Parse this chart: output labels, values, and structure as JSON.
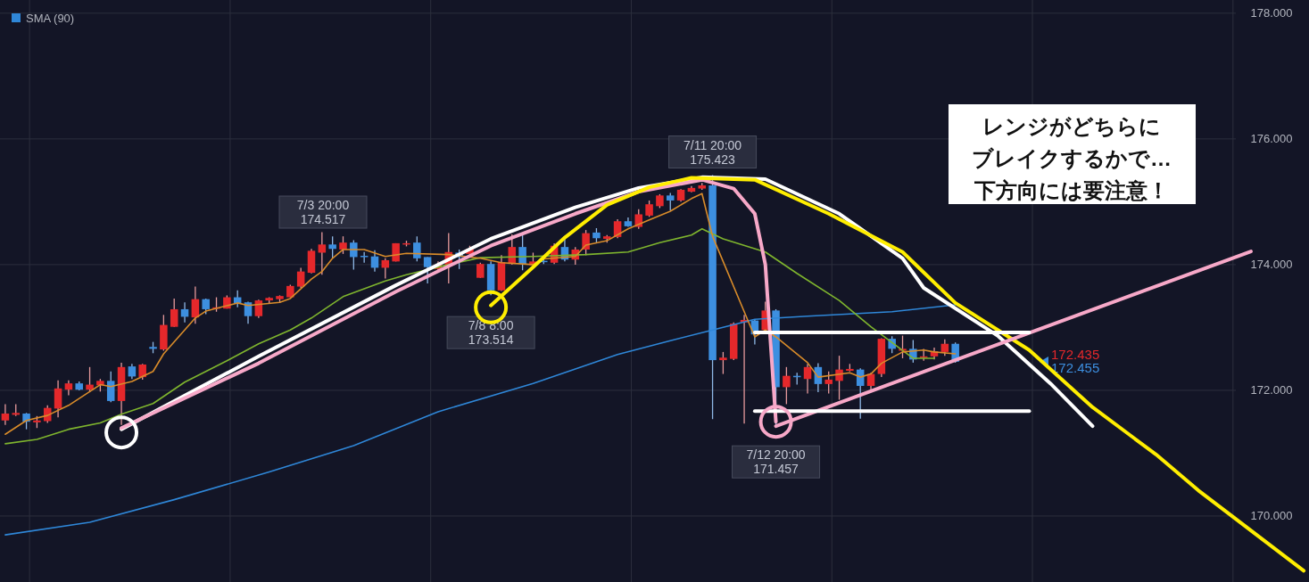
{
  "chart_data": {
    "type": "candlestick",
    "categories": [
      null,
      null,
      null,
      null,
      null,
      null,
      null,
      null,
      null,
      null,
      null,
      null,
      null,
      null,
      null,
      null,
      null,
      null,
      null,
      null,
      null,
      null,
      null,
      null,
      null,
      null,
      null,
      null,
      null,
      null,
      null,
      null,
      null,
      null,
      null,
      null,
      null,
      null,
      null,
      null,
      null,
      null,
      null,
      null,
      null,
      null,
      null,
      null,
      null,
      null,
      null,
      null,
      null,
      null,
      null,
      null,
      null,
      null,
      null,
      null,
      null,
      null,
      null,
      null,
      null,
      null,
      null,
      null,
      null,
      null,
      null,
      null,
      null,
      null,
      null,
      null,
      null,
      null,
      null,
      null,
      null,
      null,
      null,
      null,
      null,
      null,
      null,
      null,
      null,
      null,
      null,
      null,
      null,
      null,
      null,
      null,
      null,
      null,
      null,
      null,
      null,
      null,
      null,
      null,
      null,
      null,
      null,
      null,
      null,
      null,
      null,
      null,
      null,
      null,
      null,
      null,
      null,
      null,
      null,
      null,
      null,
      null,
      null,
      null
    ],
    "ohlc": [
      [
        171.52,
        171.78,
        171.45,
        171.63
      ],
      [
        171.61,
        171.78,
        171.59,
        171.64
      ],
      [
        171.63,
        171.64,
        171.38,
        171.5
      ],
      [
        171.49,
        171.59,
        171.4,
        171.52
      ],
      [
        171.51,
        171.76,
        171.48,
        171.72
      ],
      [
        171.71,
        172.16,
        171.57,
        172.03
      ],
      [
        172.01,
        172.16,
        171.92,
        172.11
      ],
      [
        172.11,
        172.14,
        172.0,
        172.01
      ],
      [
        172.01,
        172.37,
        171.97,
        172.09
      ],
      [
        172.08,
        172.18,
        171.98,
        172.15
      ],
      [
        172.15,
        172.3,
        171.81,
        171.83
      ],
      [
        171.83,
        172.44,
        171.45,
        172.37
      ],
      [
        172.38,
        172.42,
        172.18,
        172.22
      ],
      [
        172.21,
        172.42,
        172.17,
        172.41
      ],
      [
        172.69,
        172.77,
        172.59,
        172.66
      ],
      [
        172.65,
        173.2,
        172.63,
        173.04
      ],
      [
        173.01,
        173.46,
        173.01,
        173.29
      ],
      [
        173.29,
        173.4,
        173.08,
        173.17
      ],
      [
        173.16,
        173.65,
        173.06,
        173.45
      ],
      [
        173.45,
        173.46,
        173.21,
        173.29
      ],
      [
        173.3,
        173.48,
        173.25,
        173.32
      ],
      [
        173.3,
        173.51,
        173.3,
        173.48
      ],
      [
        173.48,
        173.59,
        173.32,
        173.38
      ],
      [
        173.4,
        173.41,
        173.06,
        173.18
      ],
      [
        173.18,
        173.44,
        173.15,
        173.43
      ],
      [
        173.43,
        173.48,
        173.39,
        173.47
      ],
      [
        173.45,
        173.51,
        173.39,
        173.5
      ],
      [
        173.48,
        173.68,
        173.48,
        173.66
      ],
      [
        173.65,
        173.95,
        173.63,
        173.89
      ],
      [
        173.87,
        174.25,
        173.86,
        174.22
      ],
      [
        174.19,
        174.517,
        173.84,
        174.32
      ],
      [
        174.32,
        174.45,
        174.1,
        174.25
      ],
      [
        174.24,
        174.45,
        174.17,
        174.35
      ],
      [
        174.35,
        174.39,
        173.92,
        174.12
      ],
      [
        174.14,
        174.2,
        174.03,
        174.12
      ],
      [
        174.13,
        174.23,
        173.89,
        173.95
      ],
      [
        173.95,
        174.1,
        173.78,
        174.07
      ],
      [
        174.05,
        174.34,
        174.05,
        174.34
      ],
      [
        174.32,
        174.38,
        174.29,
        174.34
      ],
      [
        174.35,
        174.45,
        174.05,
        174.1
      ],
      [
        174.12,
        174.12,
        173.7,
        173.96
      ],
      [
        173.93,
        174.05,
        173.88,
        174.0
      ],
      [
        173.97,
        174.5,
        173.7,
        174.2
      ],
      [
        174.19,
        174.24,
        173.93,
        174.12
      ],
      [
        174.17,
        174.3,
        174.12,
        174.25
      ],
      [
        173.79,
        174.03,
        173.79,
        174.01
      ],
      [
        174.01,
        174.05,
        173.514,
        173.59
      ],
      [
        173.59,
        174.15,
        173.58,
        174.04
      ],
      [
        174.01,
        174.48,
        174.0,
        174.28
      ],
      [
        174.28,
        174.47,
        173.91,
        174.01
      ],
      [
        173.99,
        174.19,
        173.96,
        174.05
      ],
      [
        174.06,
        174.1,
        174.01,
        174.04
      ],
      [
        174.03,
        174.34,
        174.01,
        174.3
      ],
      [
        174.28,
        174.43,
        174.05,
        174.08
      ],
      [
        174.08,
        174.28,
        174.0,
        174.24
      ],
      [
        174.24,
        174.55,
        174.15,
        174.5
      ],
      [
        174.51,
        174.58,
        174.34,
        174.42
      ],
      [
        174.41,
        174.47,
        174.35,
        174.45
      ],
      [
        174.44,
        174.72,
        174.42,
        174.69
      ],
      [
        174.69,
        174.75,
        174.6,
        174.61
      ],
      [
        174.6,
        174.88,
        174.57,
        174.8
      ],
      [
        174.78,
        175.02,
        174.76,
        174.96
      ],
      [
        174.93,
        175.12,
        174.9,
        175.1
      ],
      [
        175.1,
        175.14,
        174.86,
        175.02
      ],
      [
        175.02,
        175.2,
        175.0,
        175.19
      ],
      [
        175.16,
        175.25,
        175.15,
        175.22
      ],
      [
        175.21,
        175.3,
        175.19,
        175.26
      ],
      [
        175.26,
        175.423,
        171.54,
        172.48
      ],
      [
        172.48,
        172.61,
        172.26,
        172.52
      ],
      [
        172.5,
        173.08,
        172.48,
        173.06
      ],
      [
        173.08,
        173.2,
        171.47,
        173.12
      ],
      [
        173.11,
        173.13,
        172.73,
        172.89
      ],
      [
        172.96,
        173.41,
        172.94,
        173.27
      ],
      [
        173.27,
        173.29,
        171.457,
        172.05
      ],
      [
        172.05,
        172.37,
        171.78,
        172.23
      ],
      [
        172.23,
        172.28,
        172.09,
        172.21
      ],
      [
        172.18,
        172.42,
        171.95,
        172.37
      ],
      [
        172.37,
        172.43,
        171.97,
        172.1
      ],
      [
        172.1,
        172.3,
        171.95,
        172.17
      ],
      [
        172.15,
        172.55,
        171.85,
        172.33
      ],
      [
        172.31,
        172.42,
        172.3,
        172.34
      ],
      [
        172.33,
        172.35,
        171.55,
        172.07
      ],
      [
        172.07,
        172.28,
        172.0,
        172.26
      ],
      [
        172.26,
        172.83,
        172.21,
        172.82
      ],
      [
        172.82,
        172.86,
        172.59,
        172.66
      ],
      [
        172.63,
        172.87,
        172.51,
        172.66
      ],
      [
        172.66,
        172.8,
        172.44,
        172.49
      ],
      [
        172.52,
        172.66,
        172.47,
        172.54
      ],
      [
        172.54,
        172.68,
        172.49,
        172.62
      ],
      [
        172.61,
        172.81,
        172.55,
        172.74
      ],
      [
        172.74,
        172.76,
        172.44,
        172.455
      ],
      null,
      null,
      null,
      null,
      null,
      null,
      null,
      null,
      null,
      null,
      null,
      null,
      null,
      null,
      null,
      null,
      null,
      null,
      null,
      null,
      null,
      null,
      null,
      null,
      null,
      null,
      null,
      null,
      null,
      null,
      null,
      null,
      null
    ],
    "series": [
      {
        "type": "line",
        "color": "#2f87d8",
        "name": "SMA (90)",
        "values": [
          169.7,
          null,
          null,
          null,
          null,
          null,
          null,
          null,
          169.9,
          null,
          null,
          null,
          null,
          null,
          null,
          null,
          170.26,
          null,
          null,
          null,
          null,
          null,
          null,
          null,
          null,
          170.7,
          null,
          null,
          null,
          null,
          null,
          null,
          null,
          171.12,
          null,
          null,
          null,
          null,
          null,
          null,
          null,
          171.66,
          null,
          null,
          null,
          null,
          null,
          null,
          null,
          null,
          172.11,
          null,
          null,
          null,
          null,
          null,
          null,
          null,
          172.57,
          null,
          null,
          null,
          null,
          172.79,
          null,
          null,
          null,
          172.96,
          null,
          null,
          null,
          173.13,
          null,
          null,
          null,
          null,
          173.18,
          null,
          null,
          null,
          null,
          null,
          null,
          null,
          173.25,
          null,
          null,
          null,
          null,
          null,
          173.36,
          null,
          null,
          null,
          null,
          null,
          null,
          null,
          null,
          null,
          null,
          null,
          null,
          null,
          null,
          null,
          null,
          null,
          null,
          null,
          null,
          null,
          null,
          null,
          null,
          null,
          null,
          null,
          null,
          null,
          null,
          null,
          null,
          null
        ]
      },
      {
        "type": "line",
        "color": "#7fb52e",
        "values": [
          171.15,
          null,
          null,
          171.22,
          null,
          null,
          171.38,
          null,
          null,
          171.48,
          null,
          171.62,
          null,
          null,
          171.79,
          null,
          null,
          172.13,
          null,
          null,
          null,
          172.47,
          null,
          null,
          172.74,
          null,
          null,
          172.96,
          null,
          173.15,
          null,
          null,
          173.49,
          null,
          null,
          null,
          173.74,
          null,
          173.84,
          null,
          null,
          null,
          174.0,
          null,
          null,
          174.11,
          null,
          null,
          null,
          null,
          174.13,
          null,
          null,
          null,
          null,
          174.16,
          null,
          null,
          null,
          174.2,
          null,
          null,
          174.35,
          null,
          null,
          174.47,
          174.57,
          null,
          174.41,
          null,
          null,
          null,
          174.2,
          null,
          null,
          173.86,
          null,
          null,
          null,
          173.43,
          null,
          null,
          173.01,
          null,
          null,
          null,
          172.51,
          null,
          172.51,
          null,
          null,
          null,
          null,
          null,
          null,
          null,
          null,
          null,
          null,
          null,
          null,
          null,
          null,
          null,
          null,
          null,
          null,
          null,
          null,
          null,
          null,
          null,
          null,
          null,
          null,
          null,
          null,
          null,
          null,
          null,
          null,
          null,
          null,
          null
        ]
      },
      {
        "type": "line",
        "color": "#d98c2a",
        "values": [
          171.3,
          null,
          171.52,
          null,
          171.6,
          null,
          171.76,
          null,
          null,
          172.09,
          172.06,
          null,
          172.14,
          null,
          172.3,
          172.58,
          null,
          null,
          173.15,
          173.26,
          null,
          null,
          173.39,
          173.35,
          null,
          null,
          173.4,
          173.46,
          null,
          173.77,
          173.89,
          174.1,
          174.24,
          null,
          174.24,
          null,
          174.13,
          null,
          174.18,
          null,
          null,
          null,
          174.16,
          null,
          null,
          174.1,
          null,
          174.03,
          null,
          null,
          174.0,
          174.09,
          null,
          null,
          174.13,
          174.31,
          null,
          174.38,
          null,
          174.57,
          null,
          174.71,
          null,
          174.85,
          null,
          175.05,
          175.13,
          174.45,
          null,
          null,
          173.25,
          172.85,
          172.96,
          172.85,
          null,
          null,
          172.44,
          172.21,
          null,
          null,
          172.28,
          172.21,
          172.26,
          172.43,
          null,
          172.61,
          null,
          172.64,
          172.61,
          null,
          172.58,
          null,
          null,
          null,
          null,
          null,
          null,
          null,
          null,
          null,
          null,
          null,
          null,
          null,
          null,
          null,
          null,
          null,
          null,
          null,
          null,
          null,
          null,
          null,
          null,
          null,
          null,
          null,
          null,
          null,
          null,
          null,
          null,
          null
        ]
      },
      {
        "type": "line",
        "color": "#ffffff",
        "values": [
          null,
          null,
          null,
          null,
          null,
          null,
          null,
          null,
          null,
          null,
          null,
          171.38,
          null,
          null,
          null,
          null,
          null,
          null,
          null,
          null,
          null,
          null,
          null,
          null,
          172.54,
          null,
          null,
          null,
          null,
          null,
          null,
          null,
          null,
          null,
          null,
          null,
          null,
          173.67,
          null,
          null,
          null,
          null,
          null,
          null,
          null,
          null,
          174.41,
          null,
          null,
          null,
          null,
          null,
          null,
          null,
          174.91,
          null,
          null,
          null,
          null,
          null,
          175.22,
          null,
          null,
          null,
          null,
          null,
          175.39,
          null,
          null,
          null,
          null,
          null,
          175.36,
          null,
          null,
          null,
          null,
          null,
          null,
          174.81,
          null,
          null,
          null,
          null,
          null,
          174.1,
          null,
          173.63,
          null,
          null,
          null,
          null,
          null,
          null,
          172.87,
          null,
          null,
          null,
          null,
          172.11,
          null,
          null,
          null,
          171.43,
          null,
          null,
          null,
          null,
          null,
          null,
          null,
          null,
          null,
          null,
          null,
          null,
          null,
          null,
          null,
          null,
          null,
          null,
          null,
          null
        ]
      },
      {
        "type": "line",
        "color": "#f7a8c8",
        "values": [
          null,
          null,
          null,
          null,
          null,
          null,
          null,
          null,
          null,
          null,
          null,
          171.4,
          null,
          null,
          null,
          null,
          null,
          null,
          null,
          null,
          null,
          null,
          null,
          null,
          172.43,
          null,
          null,
          null,
          null,
          null,
          null,
          null,
          null,
          null,
          null,
          null,
          null,
          173.57,
          null,
          null,
          null,
          null,
          null,
          null,
          null,
          null,
          174.3,
          null,
          null,
          null,
          null,
          null,
          null,
          null,
          174.81,
          null,
          null,
          null,
          null,
          null,
          175.16,
          null,
          null,
          null,
          null,
          null,
          175.35,
          null,
          null,
          175.21,
          null,
          174.81,
          174.0,
          171.5,
          null,
          null,
          null,
          null,
          null,
          null,
          null,
          null,
          null,
          null,
          null,
          null,
          null,
          null,
          null,
          null,
          null,
          null,
          null,
          null,
          null,
          null,
          null,
          null,
          null,
          null,
          null,
          null,
          null,
          null,
          null,
          null,
          null,
          null,
          null,
          null,
          null,
          null,
          null,
          null,
          null,
          null,
          null,
          null,
          null,
          null,
          null,
          null,
          null,
          null
        ]
      },
      {
        "type": "line",
        "color": "#ffee00",
        "values": [
          null,
          null,
          null,
          null,
          null,
          null,
          null,
          null,
          null,
          null,
          null,
          null,
          null,
          null,
          null,
          null,
          null,
          null,
          null,
          null,
          null,
          null,
          null,
          null,
          null,
          null,
          null,
          null,
          null,
          null,
          null,
          null,
          null,
          null,
          null,
          null,
          null,
          null,
          null,
          null,
          null,
          null,
          null,
          null,
          null,
          null,
          173.35,
          null,
          null,
          null,
          173.96,
          null,
          null,
          174.43,
          null,
          null,
          null,
          174.95,
          null,
          null,
          null,
          175.23,
          null,
          null,
          null,
          175.38,
          null,
          null,
          null,
          null,
          null,
          175.35,
          null,
          null,
          null,
          null,
          null,
          null,
          174.81,
          null,
          null,
          null,
          null,
          null,
          null,
          174.2,
          null,
          null,
          null,
          null,
          173.39,
          null,
          null,
          null,
          null,
          null,
          null,
          172.64,
          null,
          null,
          null,
          null,
          null,
          171.73,
          null,
          null,
          null,
          null,
          null,
          170.98,
          null,
          null,
          null,
          170.41,
          null,
          null,
          null,
          null,
          null,
          null,
          null,
          null,
          null,
          169.13
        ]
      },
      {
        "type": "line",
        "color": "#f7a8c8",
        "values": [
          null,
          null,
          null,
          null,
          null,
          null,
          null,
          null,
          null,
          null,
          null,
          null,
          null,
          null,
          null,
          null,
          null,
          null,
          null,
          null,
          null,
          null,
          null,
          null,
          null,
          null,
          null,
          null,
          null,
          null,
          null,
          null,
          null,
          null,
          null,
          null,
          null,
          null,
          null,
          null,
          null,
          null,
          null,
          null,
          null,
          null,
          null,
          null,
          null,
          null,
          null,
          null,
          null,
          null,
          null,
          null,
          null,
          null,
          null,
          null,
          null,
          null,
          null,
          null,
          null,
          null,
          null,
          null,
          null,
          null,
          null,
          null,
          null,
          171.43,
          null,
          null,
          null,
          null,
          null,
          null,
          null,
          null,
          null,
          null,
          null,
          null,
          null,
          null,
          null,
          null,
          null,
          null,
          null,
          null,
          null,
          null,
          null,
          null,
          null,
          null,
          null,
          null,
          null,
          null,
          null,
          null,
          null,
          null,
          null,
          null,
          null,
          null,
          null,
          null,
          null,
          null,
          null,
          null,
          174.21,
          null,
          null,
          null,
          null,
          null
        ]
      },
      {
        "type": "line",
        "color": "#ffffff",
        "values": [
          null,
          null,
          null,
          null,
          null,
          null,
          null,
          null,
          null,
          null,
          null,
          null,
          null,
          null,
          null,
          null,
          null,
          null,
          null,
          null,
          null,
          null,
          null,
          null,
          null,
          null,
          null,
          null,
          null,
          null,
          null,
          null,
          null,
          null,
          null,
          null,
          null,
          null,
          null,
          null,
          null,
          null,
          null,
          null,
          null,
          null,
          null,
          null,
          null,
          null,
          null,
          null,
          null,
          null,
          null,
          null,
          null,
          null,
          null,
          null,
          null,
          null,
          null,
          null,
          null,
          null,
          null,
          null,
          null,
          null,
          null,
          172.92,
          null,
          null,
          null,
          null,
          null,
          null,
          null,
          null,
          null,
          null,
          null,
          null,
          null,
          null,
          null,
          null,
          null,
          null,
          null,
          null,
          null,
          null,
          null,
          null,
          null,
          172.92,
          null,
          null,
          null,
          null,
          null,
          null,
          null,
          null,
          null,
          null,
          null,
          null,
          null,
          null,
          null,
          null,
          null,
          null,
          null,
          null,
          null,
          null,
          null,
          null,
          null,
          null
        ]
      },
      {
        "type": "line",
        "color": "#ffffff",
        "values": [
          null,
          null,
          null,
          null,
          null,
          null,
          null,
          null,
          null,
          null,
          null,
          null,
          null,
          null,
          null,
          null,
          null,
          null,
          null,
          null,
          null,
          null,
          null,
          null,
          null,
          null,
          null,
          null,
          null,
          null,
          null,
          null,
          null,
          null,
          null,
          null,
          null,
          null,
          null,
          null,
          null,
          null,
          null,
          null,
          null,
          null,
          null,
          null,
          null,
          null,
          null,
          null,
          null,
          null,
          null,
          null,
          null,
          null,
          null,
          null,
          null,
          null,
          null,
          null,
          null,
          null,
          null,
          null,
          null,
          null,
          null,
          171.67,
          null,
          null,
          null,
          null,
          null,
          null,
          null,
          null,
          null,
          null,
          null,
          null,
          null,
          null,
          null,
          null,
          null,
          null,
          null,
          null,
          null,
          null,
          null,
          null,
          null,
          171.67,
          null,
          null,
          null,
          null,
          null,
          null,
          null,
          null,
          null,
          null,
          null,
          null,
          null,
          null,
          null,
          null,
          null,
          null,
          null,
          null,
          null,
          null,
          null,
          null,
          null,
          null
        ]
      },
      {
        "type": "scatter",
        "color": "#ffffff",
        "values": [
          null,
          null,
          null,
          null,
          null,
          null,
          null,
          null,
          null,
          null,
          null,
          171.33,
          null,
          null,
          null,
          null,
          null,
          null,
          null,
          null,
          null,
          null,
          null,
          null,
          null,
          null,
          null,
          null,
          null,
          null,
          null,
          null,
          null,
          null,
          null,
          null,
          null,
          null,
          null,
          null,
          null,
          null,
          null,
          null,
          null,
          null,
          null,
          null,
          null,
          null,
          null,
          null,
          null,
          null,
          null,
          null,
          null,
          null,
          null,
          null,
          null,
          null,
          null,
          null,
          null,
          null,
          null,
          null,
          null,
          null,
          null,
          null,
          null,
          null,
          null,
          null,
          null,
          null,
          null,
          null,
          null,
          null,
          null,
          null,
          null,
          null,
          null,
          null,
          null,
          null,
          null,
          null,
          null,
          null,
          null,
          null,
          null,
          null,
          null,
          null,
          null,
          null,
          null,
          null,
          null,
          null,
          null,
          null,
          null,
          null,
          null,
          null,
          null,
          null,
          null,
          null,
          null,
          null,
          null,
          null,
          null,
          null,
          null,
          null
        ]
      },
      {
        "type": "scatter",
        "color": "#ffee00",
        "values": [
          null,
          null,
          null,
          null,
          null,
          null,
          null,
          null,
          null,
          null,
          null,
          null,
          null,
          null,
          null,
          null,
          null,
          null,
          null,
          null,
          null,
          null,
          null,
          null,
          null,
          null,
          null,
          null,
          null,
          null,
          null,
          null,
          null,
          null,
          null,
          null,
          null,
          null,
          null,
          null,
          null,
          null,
          null,
          null,
          null,
          null,
          173.32,
          null,
          null,
          null,
          null,
          null,
          null,
          null,
          null,
          null,
          null,
          null,
          null,
          null,
          null,
          null,
          null,
          null,
          null,
          null,
          null,
          null,
          null,
          null,
          null,
          null,
          null,
          null,
          null,
          null,
          null,
          null,
          null,
          null,
          null,
          null,
          null,
          null,
          null,
          null,
          null,
          null,
          null,
          null,
          null,
          null,
          null,
          null,
          null,
          null,
          null,
          null,
          null,
          null,
          null,
          null,
          null,
          null,
          null,
          null,
          null,
          null,
          null,
          null,
          null,
          null,
          null,
          null,
          null,
          null,
          null,
          null,
          null,
          null,
          null,
          null,
          null,
          null
        ]
      },
      {
        "type": "scatter",
        "color": "#f7a8c8",
        "values": [
          null,
          null,
          null,
          null,
          null,
          null,
          null,
          null,
          null,
          null,
          null,
          null,
          null,
          null,
          null,
          null,
          null,
          null,
          null,
          null,
          null,
          null,
          null,
          null,
          null,
          null,
          null,
          null,
          null,
          null,
          null,
          null,
          null,
          null,
          null,
          null,
          null,
          null,
          null,
          null,
          null,
          null,
          null,
          null,
          null,
          null,
          null,
          null,
          null,
          null,
          null,
          null,
          null,
          null,
          null,
          null,
          null,
          null,
          null,
          null,
          null,
          null,
          null,
          null,
          null,
          null,
          null,
          null,
          null,
          null,
          null,
          null,
          null,
          171.5,
          null,
          null,
          null,
          null,
          null,
          null,
          null,
          null,
          null,
          null,
          null,
          null,
          null,
          null,
          null,
          null,
          null,
          null,
          null,
          null,
          null,
          null,
          null,
          null,
          null,
          null,
          null,
          null,
          null,
          null,
          null,
          null,
          null,
          null,
          null,
          null,
          null,
          null,
          null,
          null,
          null,
          null,
          null,
          null,
          null,
          null,
          null,
          null,
          null,
          null
        ]
      }
    ],
    "ylim": [
      168.95,
      178.21
    ],
    "yticks": [
      {
        "value": 170,
        "label": "170.000"
      },
      {
        "value": 172,
        "label": "172.000"
      },
      {
        "value": 174,
        "label": "174.000"
      },
      {
        "value": 176,
        "label": "176.000"
      },
      {
        "value": 178,
        "label": "178.000"
      }
    ],
    "grid": true,
    "legend": "top left",
    "annotations": [
      "レンジがどちらに",
      "ブレイクするかで…",
      "下方向には要注意！",
      "7/3 20:00\n174.517",
      {
        "text": "7/8 8:00\n173.514",
        "y": 173.514
      },
      {
        "text": "7/11 20:00\n175.423",
        "y": 175.423
      },
      {
        "text": "7/12 20:00\n171.457",
        "y": 171.457
      },
      "172.435",
      "172.455"
    ]
  }
}
